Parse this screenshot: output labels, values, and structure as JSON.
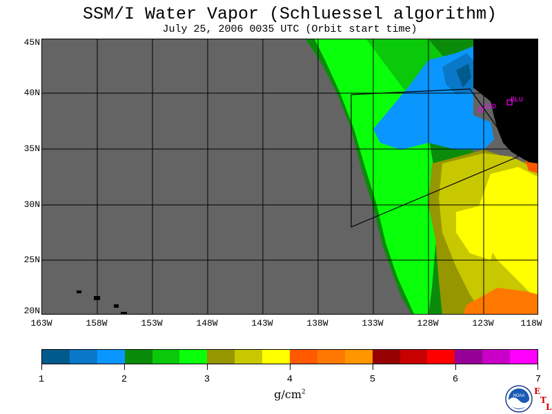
{
  "title": "SSM/I Water Vapor (Schluessel algorithm)",
  "subtitle": "July 25, 2006  0035 UTC  (Orbit start time)",
  "lat_labels": [
    "45N",
    "40N",
    "35N",
    "30N",
    "25N",
    "20N"
  ],
  "lon_labels": [
    "163W",
    "158W",
    "153W",
    "148W",
    "143W",
    "138W",
    "133W",
    "128W",
    "123W",
    "118W"
  ],
  "stations": {
    "czd": "CZD",
    "blu": "BLU"
  },
  "colorbar": {
    "colors": [
      "#005a8c",
      "#0a78c8",
      "#0a96ff",
      "#0a8c0a",
      "#0ac80a",
      "#0aff0a",
      "#969600",
      "#c8c800",
      "#ffff00",
      "#ff5a00",
      "#ff7800",
      "#ff9600",
      "#960000",
      "#c80000",
      "#ff0000",
      "#960096",
      "#c800c8",
      "#ff00ff"
    ],
    "tick_labels": [
      "1",
      "2",
      "3",
      "4",
      "5",
      "6",
      "7"
    ],
    "units": "g/cm",
    "units_sup": "2"
  },
  "map_colors": {
    "no_data": "#646464",
    "land": "#000000",
    "grid": "#000000",
    "station_marker": "#ff00ff"
  },
  "logo": {
    "noaa_text": "NOAA",
    "etl_e": "E",
    "etl_t": "T",
    "etl_l": "L"
  }
}
